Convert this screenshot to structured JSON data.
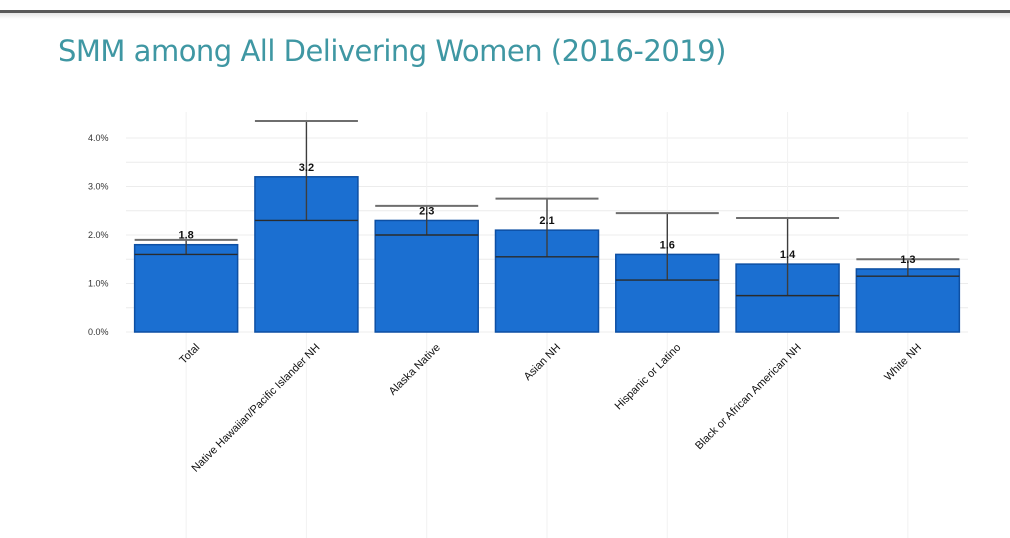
{
  "page": {
    "title": "SMM among All Delivering Women (2016-2019)"
  },
  "colors": {
    "bar": "#1b6fd1",
    "bar_edge": "#0d4fa3",
    "error_bar": "#6e6e6e",
    "title": "#3f97a3",
    "grid": "#ececec"
  },
  "chart_data": {
    "type": "bar",
    "title": "SMM among All Delivering Women (2016-2019)",
    "xlabel": "",
    "ylabel": "",
    "ylim": [
      0,
      4.4
    ],
    "yticks": [
      0,
      1,
      2,
      3,
      4
    ],
    "ytick_labels": [
      "0.0%",
      "1.0%",
      "2.0%",
      "3.0%",
      "4.0%"
    ],
    "grid": true,
    "categories": [
      "Total",
      "Native Hawaiian/Pacific Islander NH",
      "Alaska Native",
      "Asian NH",
      "Hispanic or Latino",
      "Black or African American NH",
      "White NH"
    ],
    "values": [
      1.8,
      3.2,
      2.3,
      2.1,
      1.6,
      1.4,
      1.3
    ],
    "data_labels": [
      "1.8",
      "3.2",
      "2.3",
      "2.1",
      "1.6",
      "1.4",
      "1.3"
    ],
    "error_low": [
      1.6,
      2.3,
      2.0,
      1.55,
      1.07,
      0.75,
      1.15
    ],
    "error_high": [
      1.9,
      4.35,
      2.6,
      2.75,
      2.45,
      2.35,
      1.5
    ]
  }
}
